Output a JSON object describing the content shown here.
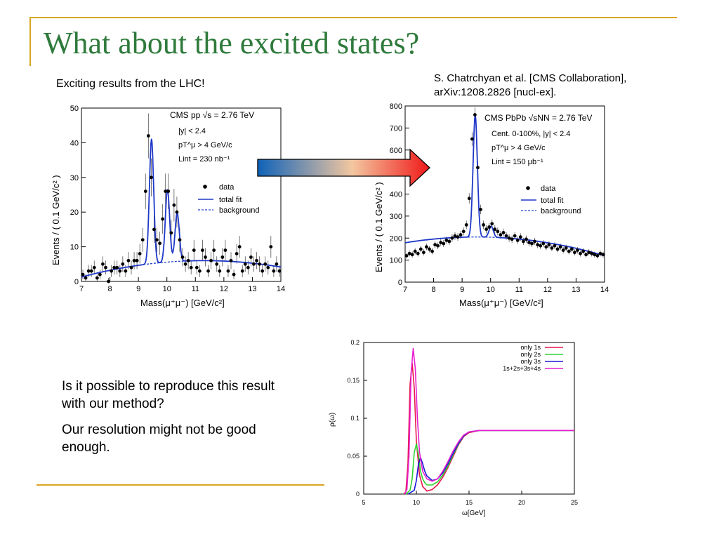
{
  "slide": {
    "title": "What about the excited states?",
    "left_caption": "Exciting results from the LHC!",
    "reference": [
      "S. Chatrchyan et al. [CMS Collaboration],",
      "arXiv:1208.2826 [nucl-ex]."
    ],
    "question": "Is it possible to reproduce this result with our method?",
    "answer": "Our resolution might not be good enough.",
    "accent_color": "#2e7a3b",
    "rule_color": "#d9a520"
  },
  "chart_data": [
    {
      "type": "scatter",
      "xlabel": "Mass(μ⁺μ⁻) [GeV/c²]",
      "ylabel": "Events / ( 0.1 GeV/c² )",
      "xlim": [
        7,
        14
      ],
      "ylim": [
        0,
        50
      ],
      "xticks": [
        "7",
        "8",
        "9",
        "10",
        "11",
        "12",
        "13",
        "14"
      ],
      "yticks": [
        "0",
        "10",
        "20",
        "30",
        "40",
        "50"
      ],
      "annotations": [
        "CMS pp √s = 2.76 TeV",
        "|y| < 2.4",
        "pT^μ > 4 GeV/c",
        "Lint = 230 nb⁻¹"
      ],
      "legend": [
        "data",
        "total fit",
        "background"
      ],
      "legend_position": "right",
      "series": [
        {
          "name": "data",
          "x": [
            7.05,
            7.15,
            7.25,
            7.35,
            7.45,
            7.55,
            7.65,
            7.75,
            7.85,
            7.95,
            8.05,
            8.15,
            8.25,
            8.35,
            8.45,
            8.55,
            8.65,
            8.75,
            8.85,
            8.95,
            9.05,
            9.15,
            9.25,
            9.35,
            9.45,
            9.55,
            9.65,
            9.75,
            9.85,
            9.95,
            10.05,
            10.15,
            10.25,
            10.35,
            10.45,
            10.55,
            10.65,
            10.75,
            10.85,
            10.95,
            11.05,
            11.15,
            11.25,
            11.35,
            11.45,
            11.55,
            11.65,
            11.75,
            11.85,
            11.95,
            12.05,
            12.15,
            12.25,
            12.35,
            12.45,
            12.55,
            12.65,
            12.75,
            12.85,
            12.95,
            13.05,
            13.15,
            13.25,
            13.35,
            13.45,
            13.55,
            13.65,
            13.75,
            13.85,
            13.95
          ],
          "y": [
            2,
            1,
            3,
            3,
            4,
            1,
            2,
            5,
            4,
            0,
            3,
            4,
            4,
            3,
            5,
            3,
            6,
            4,
            6,
            6,
            8,
            12,
            26,
            42,
            30,
            15,
            12,
            11,
            18,
            26,
            26,
            14,
            22,
            20,
            12,
            7,
            5,
            6,
            4,
            9,
            4,
            3,
            9,
            7,
            3,
            6,
            9,
            5,
            3,
            7,
            9,
            3,
            6,
            2,
            8,
            10,
            3,
            5,
            4,
            7,
            5,
            6,
            5,
            3,
            5,
            4,
            10,
            3,
            5,
            3
          ]
        },
        {
          "name": "total fit",
          "x": [],
          "y": []
        },
        {
          "name": "background",
          "x": [],
          "y": []
        }
      ]
    },
    {
      "type": "scatter",
      "xlabel": "Mass(μ⁺μ⁻) [GeV/c²]",
      "ylabel": "Events / ( 0.1 GeV/c² )",
      "xlim": [
        7,
        14
      ],
      "ylim": [
        0,
        800
      ],
      "xticks": [
        "7",
        "8",
        "9",
        "10",
        "11",
        "12",
        "13",
        "14"
      ],
      "yticks": [
        "0",
        "100",
        "200",
        "300",
        "400",
        "500",
        "600",
        "700",
        "800"
      ],
      "annotations": [
        "CMS PbPb √sNN = 2.76 TeV",
        "Cent. 0-100%, |y| < 2.4",
        "pT^μ > 4 GeV/c",
        "Lint = 150 μb⁻¹"
      ],
      "legend": [
        "data",
        "total fit",
        "background"
      ],
      "legend_position": "right",
      "series": [
        {
          "name": "data",
          "x": [
            7.05,
            7.15,
            7.25,
            7.35,
            7.45,
            7.55,
            7.65,
            7.75,
            7.85,
            7.95,
            8.05,
            8.15,
            8.25,
            8.35,
            8.45,
            8.55,
            8.65,
            8.75,
            8.85,
            8.95,
            9.05,
            9.15,
            9.25,
            9.35,
            9.45,
            9.55,
            9.65,
            9.75,
            9.85,
            9.95,
            10.05,
            10.15,
            10.25,
            10.35,
            10.45,
            10.55,
            10.65,
            10.75,
            10.85,
            10.95,
            11.05,
            11.15,
            11.25,
            11.35,
            11.45,
            11.55,
            11.65,
            11.75,
            11.85,
            11.95,
            12.05,
            12.15,
            12.25,
            12.35,
            12.45,
            12.55,
            12.65,
            12.75,
            12.85,
            12.95,
            13.05,
            13.15,
            13.25,
            13.35,
            13.45,
            13.55,
            13.65,
            13.75,
            13.85,
            13.95
          ],
          "y": [
            120,
            130,
            125,
            140,
            130,
            150,
            135,
            160,
            150,
            140,
            170,
            165,
            180,
            175,
            190,
            185,
            200,
            210,
            205,
            215,
            230,
            260,
            380,
            650,
            760,
            520,
            330,
            260,
            240,
            250,
            265,
            240,
            230,
            215,
            225,
            210,
            200,
            195,
            210,
            190,
            205,
            185,
            195,
            180,
            175,
            185,
            170,
            165,
            175,
            160,
            170,
            155,
            165,
            150,
            160,
            145,
            155,
            140,
            150,
            135,
            145,
            130,
            140,
            125,
            135,
            130,
            125,
            120,
            130,
            125
          ]
        },
        {
          "name": "total fit",
          "x": [],
          "y": []
        },
        {
          "name": "background",
          "x": [],
          "y": []
        }
      ]
    },
    {
      "type": "line",
      "xlabel": "ω[GeV]",
      "ylabel": "ρ(ω)",
      "xlim": [
        5,
        25
      ],
      "ylim": [
        0,
        0.2
      ],
      "xticks": [
        "5",
        "10",
        "15",
        "20",
        "25"
      ],
      "yticks": [
        "0",
        "0.05",
        "0.1",
        "0.15",
        "0.2"
      ],
      "legend_position": "top-right",
      "series": [
        {
          "name": "only 1s",
          "color": "#e8174a",
          "x": [
            8.8,
            9.0,
            9.2,
            9.4,
            9.6,
            9.8,
            10.0,
            10.3,
            10.6,
            11.0,
            11.5,
            12.0,
            12.5,
            13.0,
            13.5,
            14.0,
            14.5,
            15.0,
            16.0,
            17.0,
            25.0
          ],
          "y": [
            0,
            0.003,
            0.04,
            0.145,
            0.173,
            0.14,
            0.07,
            0.025,
            0.01,
            0.004,
            0.006,
            0.012,
            0.022,
            0.035,
            0.05,
            0.065,
            0.076,
            0.081,
            0.084,
            0.084,
            0.084
          ]
        },
        {
          "name": "only 2s",
          "color": "#2fd32f",
          "x": [
            9.0,
            9.4,
            9.6,
            9.8,
            10.0,
            10.2,
            10.4,
            10.6,
            10.8,
            11.0,
            11.5,
            12.0,
            12.5,
            13.0,
            13.5,
            14.0,
            14.5,
            15.0,
            16.0,
            17.0,
            25.0
          ],
          "y": [
            0,
            0.005,
            0.02,
            0.055,
            0.066,
            0.052,
            0.03,
            0.02,
            0.015,
            0.012,
            0.012,
            0.016,
            0.025,
            0.037,
            0.052,
            0.066,
            0.077,
            0.082,
            0.084,
            0.084,
            0.084
          ]
        },
        {
          "name": "only 3s",
          "color": "#1a1adb",
          "x": [
            9.2,
            9.8,
            10.0,
            10.2,
            10.4,
            10.6,
            10.8,
            11.0,
            11.5,
            12.0,
            12.5,
            13.0,
            13.5,
            14.0,
            14.5,
            15.0,
            16.0,
            17.0,
            25.0
          ],
          "y": [
            0,
            0.005,
            0.018,
            0.04,
            0.048,
            0.04,
            0.03,
            0.024,
            0.018,
            0.02,
            0.028,
            0.04,
            0.054,
            0.067,
            0.077,
            0.082,
            0.084,
            0.084,
            0.084
          ]
        },
        {
          "name": "1s+2s+3s+4s",
          "color": "#e61fd0",
          "x": [
            8.9,
            9.1,
            9.3,
            9.5,
            9.7,
            9.9,
            10.1,
            10.3,
            10.6,
            11.0,
            11.5,
            12.0,
            12.5,
            13.0,
            13.5,
            14.0,
            14.5,
            15.0,
            16.0,
            17.0,
            25.0
          ],
          "y": [
            0,
            0.006,
            0.05,
            0.16,
            0.192,
            0.165,
            0.1,
            0.055,
            0.03,
            0.02,
            0.017,
            0.02,
            0.03,
            0.043,
            0.057,
            0.069,
            0.078,
            0.082,
            0.084,
            0.084,
            0.084
          ]
        }
      ]
    }
  ]
}
